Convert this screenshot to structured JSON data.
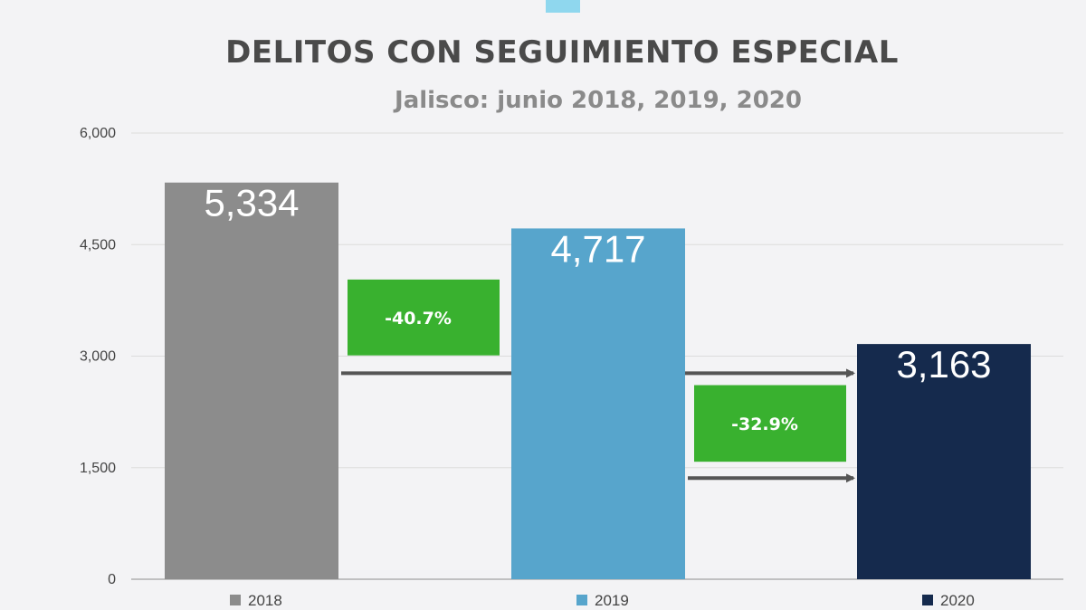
{
  "chart_data": {
    "type": "bar",
    "title": "DELITOS CON SEGUIMIENTO ESPECIAL",
    "subtitle": "Jalisco: junio 2018, 2019, 2020",
    "categories": [
      "2018",
      "2019",
      "2020"
    ],
    "values": [
      5334,
      4717,
      3163
    ],
    "value_labels": [
      "5,334",
      "4,717",
      "3,163"
    ],
    "colors": [
      "#8c8c8c",
      "#57a5cc",
      "#152a4d"
    ],
    "ylim": [
      0,
      6000
    ],
    "yticks": [
      0,
      1500,
      3000,
      4500,
      6000
    ],
    "ytick_labels": [
      "0",
      "1,500",
      "3,000",
      "4,500",
      "6,000"
    ],
    "grid": true,
    "legend": "bottom",
    "legend_entries": [
      "2018",
      "2019",
      "2020"
    ],
    "annotations": [
      {
        "text": "-40.7%",
        "from": "2018",
        "to": "2020",
        "color": "#39b12f"
      },
      {
        "text": "-32.9%",
        "from": "2019",
        "to": "2020",
        "color": "#39b12f"
      }
    ]
  }
}
